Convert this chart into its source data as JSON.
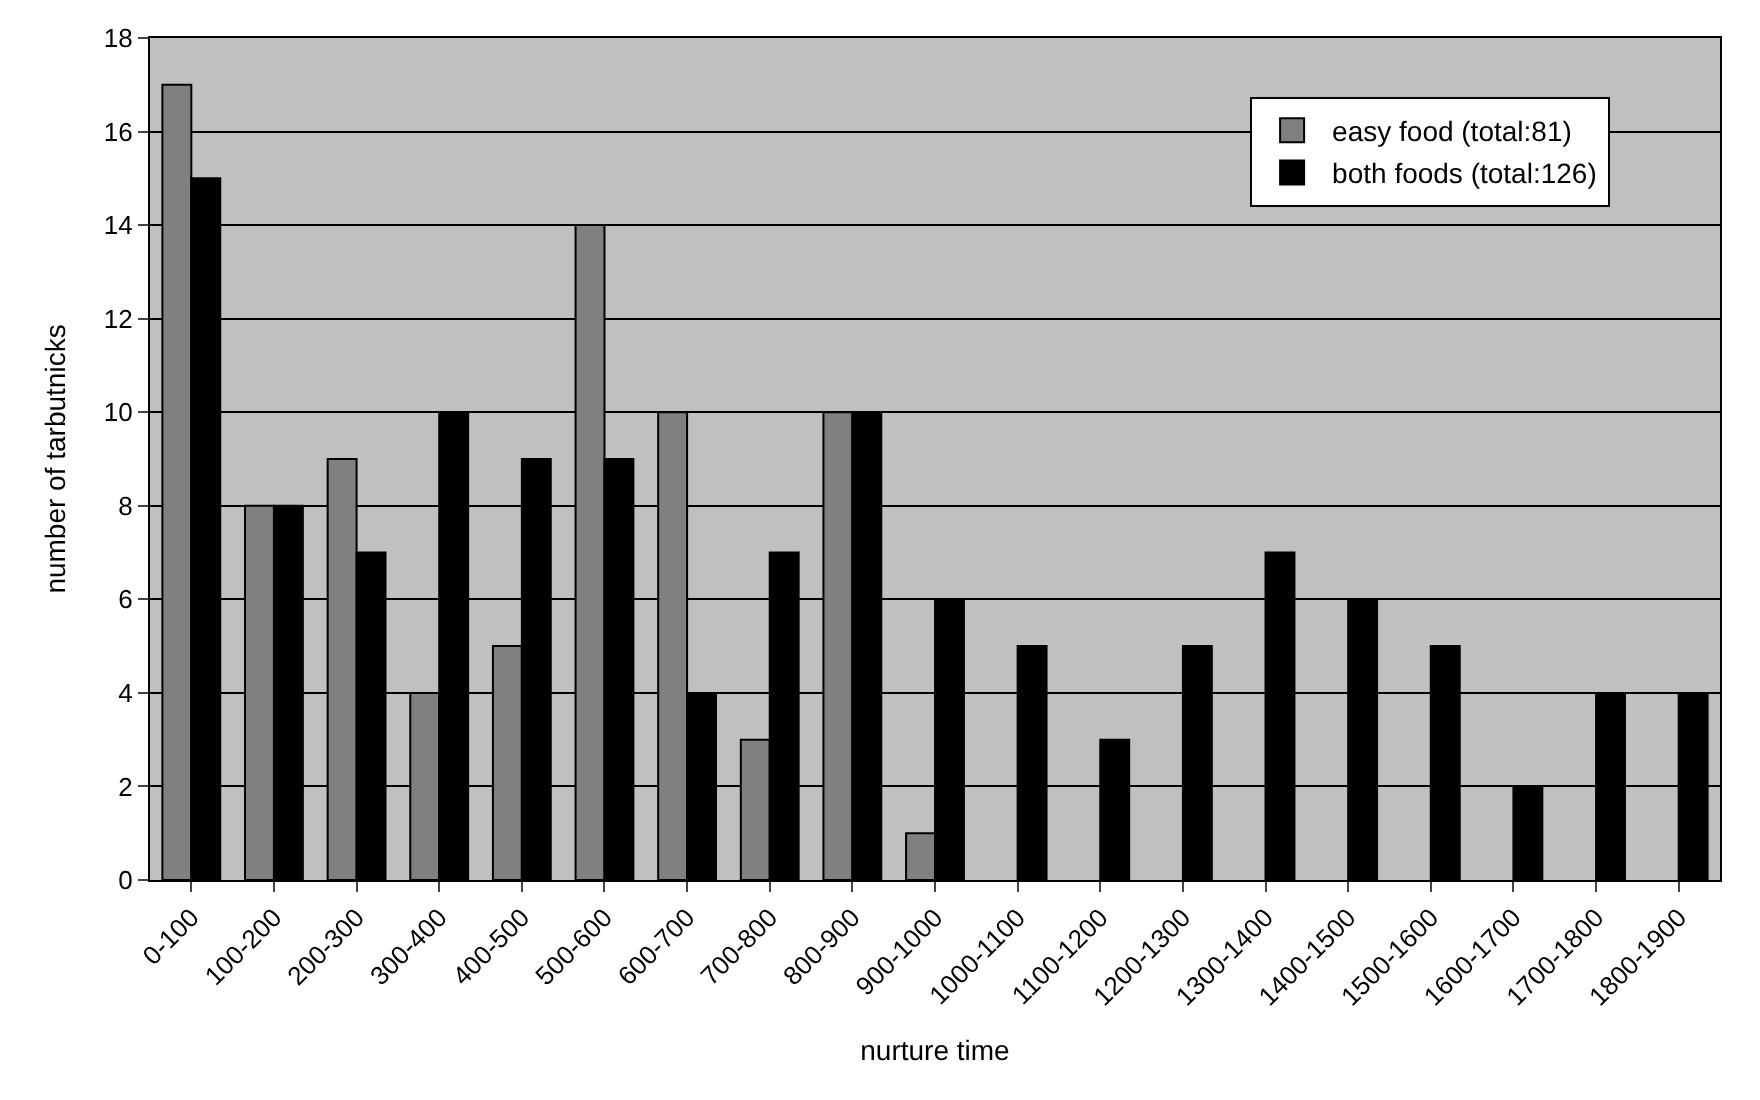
{
  "chart_data": {
    "type": "bar",
    "xlabel": "nurture time",
    "ylabel": "number of tarbutnicks",
    "categories": [
      "0-100",
      "100-200",
      "200-300",
      "300-400",
      "400-500",
      "500-600",
      "600-700",
      "700-800",
      "800-900",
      "900-1000",
      "1000-1100",
      "1100-1200",
      "1200-1300",
      "1300-1400",
      "1400-1500",
      "1500-1600",
      "1600-1700",
      "1700-1800",
      "1800-1900"
    ],
    "series": [
      {
        "name": "easy food (total:81)",
        "color": "#808080",
        "values": [
          17,
          8,
          9,
          4,
          5,
          14,
          10,
          3,
          10,
          1,
          null,
          null,
          null,
          null,
          null,
          null,
          null,
          null,
          null
        ]
      },
      {
        "name": "both foods (total:126)",
        "color": "#000000",
        "values": [
          15,
          8,
          7,
          10,
          9,
          9,
          4,
          7,
          10,
          6,
          5,
          3,
          5,
          7,
          6,
          5,
          2,
          4,
          4
        ]
      }
    ],
    "ylim": [
      0,
      18
    ],
    "yticks": [
      0,
      2,
      4,
      6,
      8,
      10,
      12,
      14,
      16,
      18
    ],
    "grid": "y",
    "legend": "top right"
  }
}
